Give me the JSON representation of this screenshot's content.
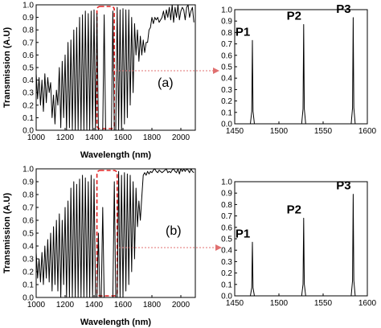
{
  "chart_data": [
    {
      "id": "a-main",
      "type": "line",
      "panel_label": "(a)",
      "xlabel": "Wavelength (nm)",
      "ylabel": "Transmission (A.U)",
      "xlim": [
        1000,
        2100
      ],
      "ylim": [
        0,
        1.0
      ],
      "xticks": [
        1000,
        1200,
        1400,
        1600,
        1800,
        2000
      ],
      "yticks": [
        0.0,
        0.1,
        0.2,
        0.3,
        0.4,
        0.5,
        0.6,
        0.7,
        0.8,
        0.9,
        1.0
      ],
      "highlight_range": [
        1420,
        1540
      ],
      "x": [
        1000,
        1010,
        1020,
        1030,
        1040,
        1050,
        1060,
        1070,
        1080,
        1090,
        1100,
        1110,
        1120,
        1130,
        1140,
        1150,
        1160,
        1170,
        1180,
        1190,
        1200,
        1210,
        1220,
        1230,
        1240,
        1250,
        1260,
        1270,
        1280,
        1290,
        1300,
        1310,
        1320,
        1330,
        1340,
        1350,
        1360,
        1370,
        1380,
        1390,
        1400,
        1410,
        1420,
        1430,
        1440,
        1450,
        1460,
        1470,
        1480,
        1490,
        1500,
        1510,
        1520,
        1530,
        1540,
        1550,
        1560,
        1570,
        1580,
        1590,
        1600,
        1610,
        1620,
        1630,
        1640,
        1650,
        1660,
        1670,
        1680,
        1690,
        1700,
        1710,
        1720,
        1730,
        1740,
        1750,
        1760,
        1770,
        1780,
        1790,
        1800,
        1810,
        1820,
        1830,
        1840,
        1850,
        1860,
        1870,
        1880,
        1890,
        1900,
        1910,
        1920,
        1930,
        1940,
        1950,
        1960,
        1970,
        1980,
        1990,
        2000,
        2010,
        2020,
        2030,
        2040,
        2050,
        2060,
        2070,
        2080,
        2090
      ],
      "y": [
        0.45,
        0.25,
        0.42,
        0.2,
        0.4,
        0.15,
        0.45,
        0.22,
        0.42,
        0.3,
        0.38,
        0.1,
        0.28,
        0.05,
        0.32,
        0.2,
        0.5,
        0.02,
        0.55,
        0.1,
        0.6,
        0.0,
        0.7,
        0.02,
        0.72,
        0.0,
        0.8,
        0.0,
        0.82,
        0.0,
        0.9,
        0.0,
        0.92,
        0.0,
        0.95,
        0.0,
        0.93,
        0.0,
        0.95,
        0.0,
        0.96,
        0.0,
        0.93,
        0.0,
        0.0,
        0.0,
        0.0,
        0.92,
        0.0,
        0.0,
        0.0,
        0.0,
        0.0,
        0.95,
        0.0,
        0.0,
        0.98,
        0.0,
        0.96,
        0.0,
        0.97,
        0.05,
        0.96,
        0.1,
        0.96,
        0.2,
        0.9,
        0.3,
        0.85,
        0.6,
        0.8,
        0.55,
        0.75,
        0.6,
        0.72,
        0.62,
        0.7,
        0.7,
        0.8,
        0.82,
        0.9,
        0.85,
        0.9,
        0.88,
        0.9,
        0.86,
        0.88,
        0.9,
        0.95,
        0.88,
        0.96,
        0.9,
        0.98,
        0.88,
        1.0,
        0.86,
        0.98,
        0.9,
        1.0,
        0.88,
        0.95,
        0.98,
        0.96,
        0.88,
        0.98,
        1.0,
        0.9,
        0.95,
        0.98,
        0.86
      ]
    },
    {
      "id": "a-zoom",
      "type": "line",
      "xlim": [
        1450,
        1600
      ],
      "ylim": [
        0,
        1.0
      ],
      "xticks": [
        1450,
        1500,
        1550,
        1600
      ],
      "yticks": [
        0.0,
        0.1,
        0.2,
        0.3,
        0.4,
        0.5,
        0.6,
        0.7,
        0.8,
        0.9,
        1.0
      ],
      "peaks": [
        {
          "label": "P1",
          "center": 1470,
          "height": 0.73
        },
        {
          "label": "P2",
          "center": 1528,
          "height": 0.87
        },
        {
          "label": "P3",
          "center": 1584,
          "height": 0.93
        }
      ]
    },
    {
      "id": "b-main",
      "type": "line",
      "panel_label": "(b)",
      "xlabel": "Wavelength (nm)",
      "ylabel": "Transmission (A.U)",
      "xlim": [
        1000,
        2100
      ],
      "ylim": [
        0,
        1.0
      ],
      "xticks": [
        1000,
        1200,
        1400,
        1600,
        1800,
        2000
      ],
      "yticks": [
        0.0,
        0.1,
        0.2,
        0.3,
        0.4,
        0.5,
        0.6,
        0.7,
        0.8,
        0.9,
        1.0
      ],
      "highlight_range": [
        1420,
        1560
      ],
      "x": [
        1000,
        1010,
        1020,
        1030,
        1040,
        1050,
        1060,
        1070,
        1080,
        1090,
        1100,
        1110,
        1120,
        1130,
        1140,
        1150,
        1160,
        1170,
        1180,
        1190,
        1200,
        1210,
        1220,
        1230,
        1240,
        1250,
        1260,
        1270,
        1280,
        1290,
        1300,
        1310,
        1320,
        1330,
        1340,
        1350,
        1360,
        1370,
        1380,
        1390,
        1400,
        1410,
        1420,
        1430,
        1440,
        1450,
        1460,
        1470,
        1480,
        1490,
        1500,
        1510,
        1520,
        1530,
        1540,
        1550,
        1560,
        1570,
        1580,
        1590,
        1600,
        1610,
        1620,
        1630,
        1640,
        1650,
        1660,
        1670,
        1680,
        1690,
        1700,
        1710,
        1720,
        1730,
        1740,
        1750,
        1760,
        1770,
        1780,
        1790,
        1800,
        1810,
        1820,
        1830,
        1840,
        1850,
        1860,
        1870,
        1880,
        1890,
        1900,
        1910,
        1920,
        1930,
        1940,
        1950,
        1960,
        1970,
        1980,
        1990,
        2000,
        2010,
        2020,
        2030,
        2040,
        2050,
        2060,
        2070,
        2080,
        2090
      ],
      "y": [
        0.35,
        0.15,
        0.3,
        0.12,
        0.35,
        0.1,
        0.4,
        0.15,
        0.45,
        0.12,
        0.5,
        0.05,
        0.55,
        0.1,
        0.6,
        0.05,
        0.65,
        0.0,
        0.6,
        0.1,
        0.7,
        0.0,
        0.75,
        0.0,
        0.85,
        0.0,
        0.9,
        0.0,
        0.88,
        0.0,
        0.92,
        0.0,
        0.95,
        0.0,
        0.93,
        0.0,
        0.9,
        0.0,
        0.95,
        0.0,
        0.92,
        0.0,
        0.0,
        0.5,
        0.0,
        0.0,
        0.7,
        0.0,
        0.0,
        0.0,
        0.0,
        0.0,
        0.0,
        0.0,
        0.9,
        0.0,
        0.0,
        0.98,
        0.0,
        0.95,
        0.0,
        0.97,
        0.05,
        0.96,
        0.1,
        0.95,
        0.2,
        0.9,
        0.3,
        0.85,
        0.55,
        0.75,
        0.6,
        0.78,
        0.95,
        0.97,
        0.95,
        0.98,
        0.96,
        0.98,
        0.97,
        0.99,
        1.0,
        0.98,
        0.97,
        0.99,
        0.98,
        0.97,
        0.98,
        0.99,
        1.0,
        0.97,
        0.98,
        0.97,
        0.99,
        1.0,
        0.98,
        0.97,
        1.0,
        0.96,
        1.0,
        0.98,
        1.0,
        0.98,
        1.0,
        0.99,
        0.97,
        1.0,
        0.98,
        0.97
      ]
    },
    {
      "id": "b-zoom",
      "type": "line",
      "xlim": [
        1450,
        1600
      ],
      "ylim": [
        0,
        1.0
      ],
      "xticks": [
        1450,
        1500,
        1550,
        1600
      ],
      "yticks": [
        0.0,
        0.1,
        0.2,
        0.3,
        0.4,
        0.5,
        0.6,
        0.7,
        0.8,
        0.9,
        1.0
      ],
      "peaks": [
        {
          "label": "P1",
          "center": 1470,
          "height": 0.47
        },
        {
          "label": "P2",
          "center": 1528,
          "height": 0.68
        },
        {
          "label": "P3",
          "center": 1584,
          "height": 0.89
        }
      ]
    }
  ]
}
